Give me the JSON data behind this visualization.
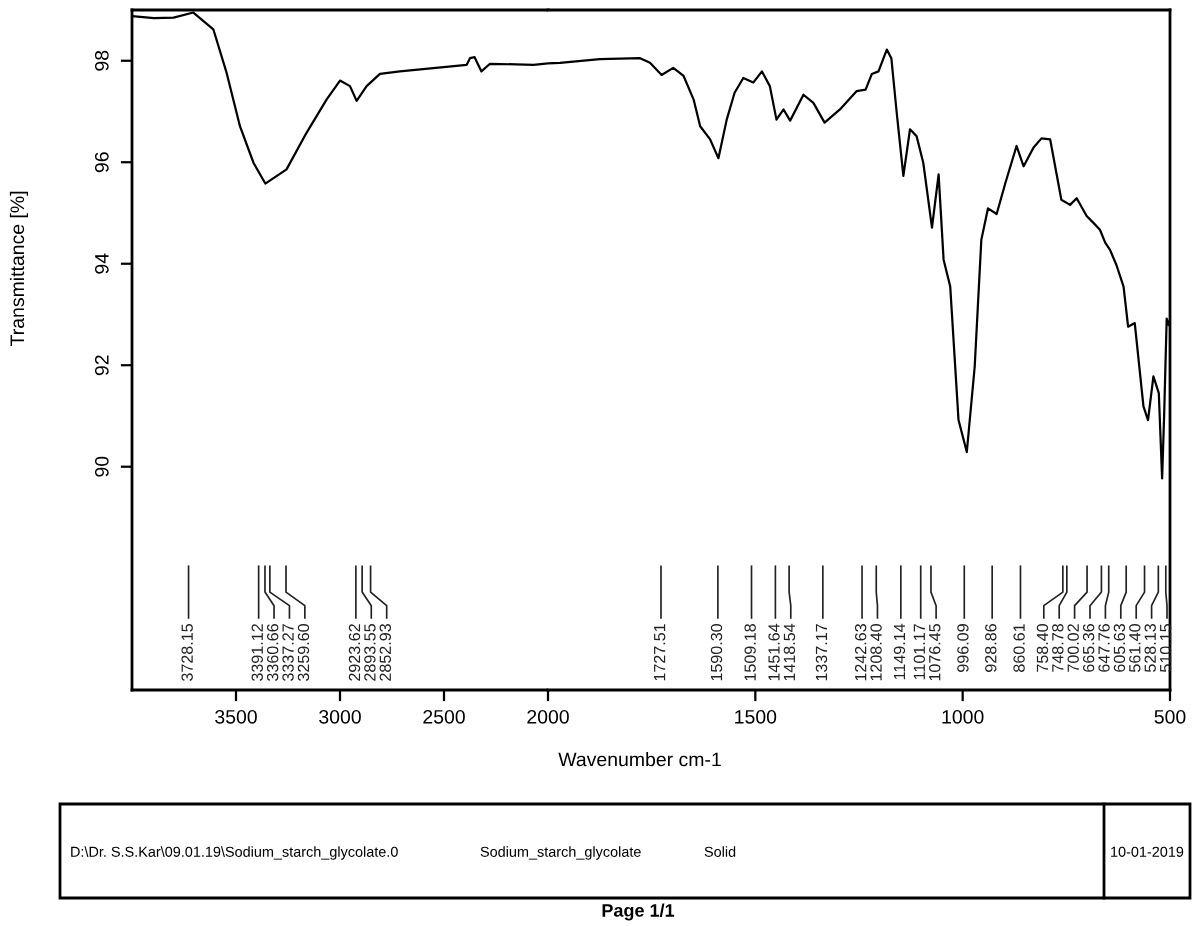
{
  "chart_data": [
    {
      "type": "line",
      "ylabel": "Transmittance [%]",
      "x": [
        4000,
        3894,
        3800,
        3705,
        3609,
        3545,
        3481,
        3416,
        3359,
        3257,
        3161,
        3064,
        3000,
        2952,
        2920,
        2872,
        2808,
        2712,
        2391,
        2375,
        2353,
        2320,
        2279,
        2070,
        2000
      ],
      "series": [
        {
          "color": "#000000",
          "values": [
            98.88,
            98.84,
            98.85,
            98.95,
            98.62,
            97.76,
            96.71,
            95.99,
            95.58,
            95.86,
            96.58,
            97.24,
            97.61,
            97.5,
            97.21,
            97.5,
            97.74,
            97.79,
            97.92,
            98.05,
            98.07,
            97.79,
            97.94,
            97.92,
            97.95
          ]
        }
      ],
      "xlim": [
        4000,
        2000
      ],
      "ylim": [
        85.6,
        99.0
      ],
      "xticks": [
        3500,
        3000,
        2500
      ],
      "yticks": [
        90,
        92,
        94,
        96,
        98
      ],
      "annotations": [
        {
          "text": "3728.15",
          "x": 3728.15
        },
        {
          "text": "3391.12",
          "x": 3391.12
        },
        {
          "text": "3360.66",
          "x": 3360.66
        },
        {
          "text": "3337.27",
          "x": 3337.27
        },
        {
          "text": "3259.60",
          "x": 3259.6
        },
        {
          "text": "2923.62",
          "x": 2923.62
        },
        {
          "text": "2893.55",
          "x": 2893.55
        },
        {
          "text": "2852.93",
          "x": 2852.93
        }
      ]
    },
    {
      "type": "line",
      "xlabel": "Wavenumber cm-1",
      "tick_labels": "x",
      "x": [
        2000,
        1971,
        1875,
        1778,
        1754,
        1726,
        1698,
        1673,
        1649,
        1633,
        1609,
        1589,
        1569,
        1550,
        1529,
        1505,
        1484,
        1465,
        1449,
        1432,
        1416,
        1384,
        1360,
        1333,
        1296,
        1256,
        1234,
        1219,
        1203,
        1183,
        1172,
        1159,
        1143,
        1127,
        1111,
        1095,
        1074,
        1058,
        1046,
        1030,
        1010,
        990,
        971,
        955,
        939,
        918,
        897,
        870,
        853,
        829,
        810,
        789,
        762,
        741,
        725,
        701,
        684,
        669,
        656,
        645,
        629,
        612,
        601,
        585,
        564,
        553,
        540,
        527,
        519,
        514,
        508,
        503,
        500
      ],
      "series": [
        {
          "color": "#000000",
          "values": [
            97.95,
            97.96,
            98.03,
            98.05,
            97.96,
            97.72,
            97.86,
            97.7,
            97.24,
            96.71,
            96.45,
            96.08,
            96.84,
            97.37,
            97.66,
            97.57,
            97.79,
            97.5,
            96.84,
            97.04,
            96.82,
            97.33,
            97.17,
            96.78,
            97.04,
            97.4,
            97.43,
            97.74,
            97.79,
            98.22,
            98.05,
            96.97,
            95.73,
            96.65,
            96.51,
            95.99,
            94.71,
            95.76,
            94.08,
            93.55,
            90.92,
            90.29,
            91.97,
            94.47,
            95.09,
            94.98,
            95.59,
            96.32,
            95.92,
            96.29,
            96.47,
            96.45,
            95.26,
            95.16,
            95.29,
            94.94,
            94.8,
            94.67,
            94.41,
            94.28,
            93.97,
            93.55,
            92.76,
            92.83,
            91.19,
            90.92,
            91.78,
            91.45,
            89.77,
            91.05,
            92.92,
            92.79,
            92.9
          ]
        }
      ],
      "xlim": [
        2000,
        500
      ],
      "ylim": [
        85.6,
        99.0
      ],
      "xticks": [
        2000,
        1500,
        1000,
        500
      ],
      "annotations": [
        {
          "text": "1727.51",
          "x": 1727.51
        },
        {
          "text": "1590.30",
          "x": 1590.3
        },
        {
          "text": "1509.18",
          "x": 1509.18
        },
        {
          "text": "1451.64",
          "x": 1451.64
        },
        {
          "text": "1418.54",
          "x": 1418.54
        },
        {
          "text": "1337.17",
          "x": 1337.17
        },
        {
          "text": "1242.63",
          "x": 1242.63
        },
        {
          "text": "1208.40",
          "x": 1208.4
        },
        {
          "text": "1149.14",
          "x": 1149.14
        },
        {
          "text": "1101.17",
          "x": 1101.17
        },
        {
          "text": "1076.45",
          "x": 1076.45
        },
        {
          "text": "996.09",
          "x": 996.09
        },
        {
          "text": "928.86",
          "x": 928.86
        },
        {
          "text": "860.61",
          "x": 860.61
        },
        {
          "text": "758.40",
          "x": 758.4
        },
        {
          "text": "748.78",
          "x": 748.78
        },
        {
          "text": "700.02",
          "x": 700.02
        },
        {
          "text": "665.36",
          "x": 665.36
        },
        {
          "text": "647.76",
          "x": 647.76
        },
        {
          "text": "605.63",
          "x": 605.63
        },
        {
          "text": "561.40",
          "x": 561.4
        },
        {
          "text": "528.13",
          "x": 528.13
        },
        {
          "text": "510.15",
          "x": 510.15
        },
        "D:\\Dr. S.S.Kar\\09.01.19\\Sodium_starch_glycolate.0",
        "Sodium_starch_glycolate",
        "Solid",
        "10-01-2019",
        "Page 1/1"
      ]
    }
  ]
}
